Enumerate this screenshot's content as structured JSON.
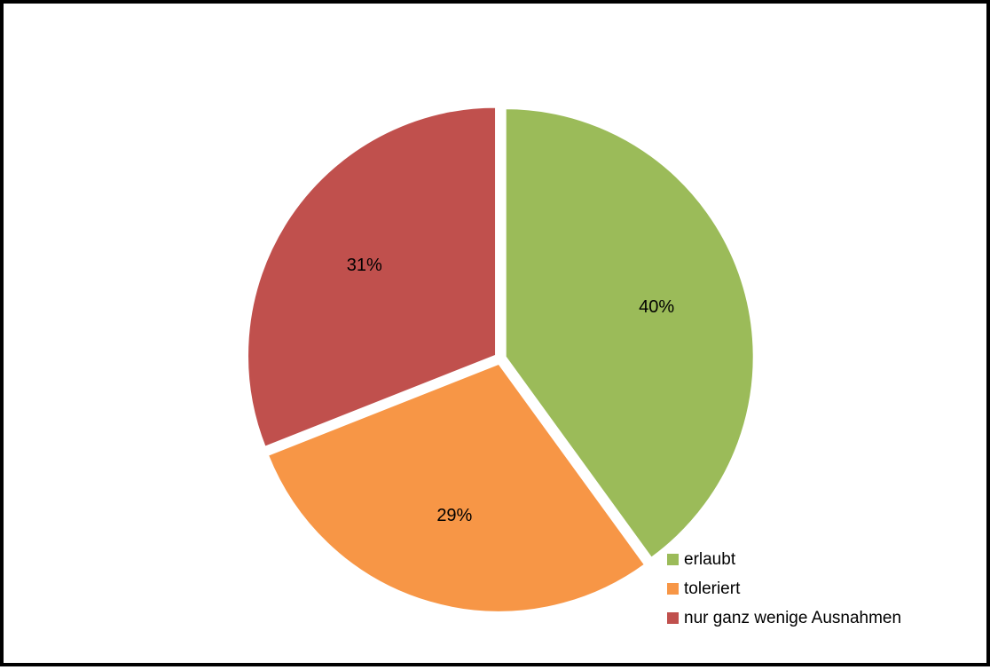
{
  "chart_data": {
    "type": "pie",
    "categories": [
      "erlaubt",
      "toleriert",
      "nur ganz wenige Ausnahmen"
    ],
    "values": [
      40,
      29,
      31
    ],
    "labels": [
      "40%",
      "29%",
      "31%"
    ],
    "colors": [
      "#9bbb59",
      "#f79646",
      "#c0504d"
    ],
    "legend_position": "bottom-right",
    "start_angle": "12 o'clock",
    "direction": "clockwise",
    "exploded": true
  }
}
